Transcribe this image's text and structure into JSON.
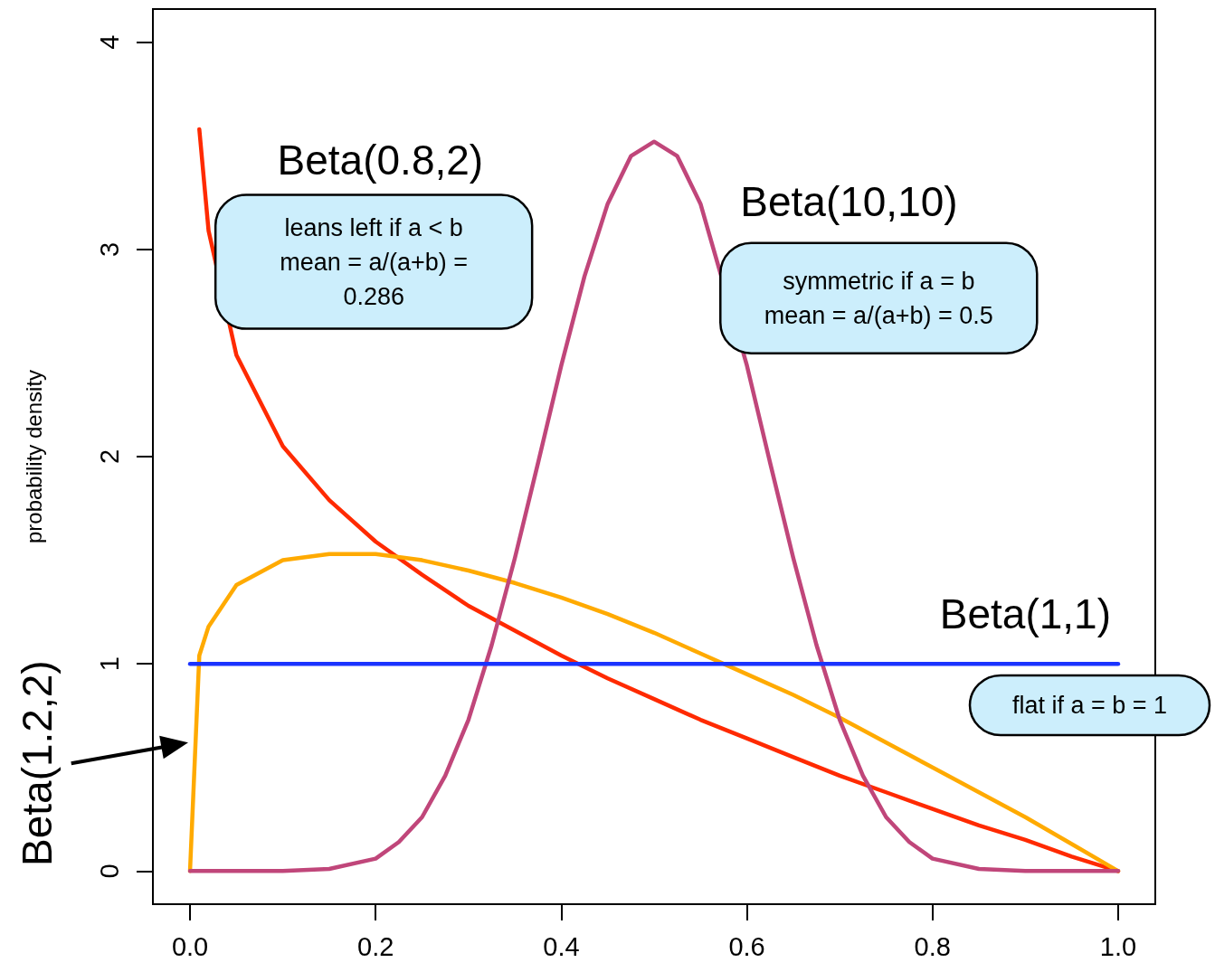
{
  "chart_data": {
    "type": "line",
    "ylabel": "probability density",
    "xlim": [
      -0.04,
      1.04
    ],
    "ylim": [
      -0.16,
      4.16
    ],
    "xticks": [
      {
        "value": 0,
        "label": "0.0"
      },
      {
        "value": 0.2,
        "label": "0.2"
      },
      {
        "value": 0.4,
        "label": "0.4"
      },
      {
        "value": 0.6,
        "label": "0.6"
      },
      {
        "value": 0.8,
        "label": "0.8"
      },
      {
        "value": 1,
        "label": "1.0"
      }
    ],
    "yticks": [
      0,
      1,
      2,
      3,
      4
    ],
    "marker": "none",
    "line_style": "solid",
    "legend": false,
    "grid": false,
    "series": [
      {
        "name": "Beta(0.8,2)",
        "color": "#ff2a00",
        "x": [
          0.01,
          0.02,
          0.05,
          0.1,
          0.15,
          0.2,
          0.25,
          0.3,
          0.35,
          0.4,
          0.45,
          0.5,
          0.55,
          0.6,
          0.65,
          0.7,
          0.75,
          0.8,
          0.85,
          0.9,
          0.95,
          1
        ],
        "values": [
          3.58,
          3.09,
          2.49,
          2.05,
          1.79,
          1.59,
          1.43,
          1.28,
          1.16,
          1.04,
          0.93,
          0.83,
          0.73,
          0.64,
          0.55,
          0.46,
          0.38,
          0.3,
          0.22,
          0.15,
          0.07,
          0
        ]
      },
      {
        "color": "#ffaa00",
        "x": [
          0,
          0.01,
          0.02,
          0.05,
          0.1,
          0.15,
          0.2,
          0.25,
          0.3,
          0.35,
          0.4,
          0.45,
          0.5,
          0.55,
          0.6,
          0.65,
          0.7,
          0.75,
          0.8,
          0.85,
          0.9,
          0.95,
          1
        ],
        "values": [
          0,
          1.04,
          1.18,
          1.38,
          1.5,
          1.53,
          1.53,
          1.5,
          1.45,
          1.39,
          1.32,
          1.24,
          1.15,
          1.05,
          0.95,
          0.85,
          0.74,
          0.62,
          0.5,
          0.38,
          0.26,
          0.13,
          0
        ]
      },
      {
        "name": "Beta(10,10)",
        "color": "#c0467a",
        "x": [
          0,
          0.05,
          0.1,
          0.15,
          0.2,
          0.225,
          0.25,
          0.275,
          0.3,
          0.325,
          0.35,
          0.375,
          0.4,
          0.425,
          0.45,
          0.475,
          0.5,
          0.525,
          0.55,
          0.575,
          0.6,
          0.625,
          0.65,
          0.675,
          0.7,
          0.725,
          0.75,
          0.775,
          0.8,
          0.85,
          0.9,
          0.95,
          1
        ],
        "values": [
          0,
          0,
          0,
          0.01,
          0.06,
          0.14,
          0.26,
          0.46,
          0.73,
          1.09,
          1.51,
          1.97,
          2.44,
          2.87,
          3.22,
          3.45,
          3.52,
          3.45,
          3.22,
          null,
          2.44,
          1.97,
          1.51,
          1.09,
          0.73,
          0.46,
          0.26,
          0.14,
          0.06,
          0.01,
          0,
          0,
          0
        ]
      },
      {
        "name": "Beta(1,1)",
        "color": "#1a33ff",
        "x": [
          0,
          1
        ],
        "values": [
          1,
          1
        ]
      }
    ],
    "annotations": [
      "leans left if a < b\nmean = a/(a+b) =\n0.286",
      "symmetric if a = b\nmean = a/(a+b) = 0.5",
      "flat if a = b = 1",
      "Beta(1.2,2)"
    ]
  }
}
